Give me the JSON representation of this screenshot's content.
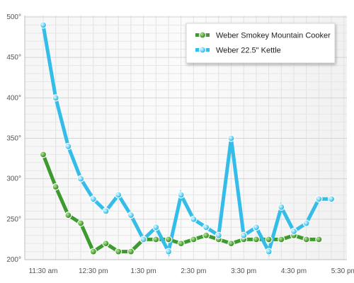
{
  "chart_data": {
    "type": "line",
    "title": "",
    "xlabel": "",
    "ylabel": "",
    "x": [
      "11:30 am",
      "11:45 am",
      "12:00 pm",
      "12:15 pm",
      "12:30 pm",
      "12:45 pm",
      "1:00 pm",
      "1:15 pm",
      "1:30 pm",
      "1:45 pm",
      "2:00 pm",
      "2:15 pm",
      "2:30 pm",
      "2:45 pm",
      "3:00 pm",
      "3:15 pm",
      "3:30 pm",
      "3:45 pm",
      "4:00 pm",
      "4:15 pm",
      "4:30 pm",
      "4:45 pm",
      "5:00 pm",
      "5:15 pm",
      "5:30 pm"
    ],
    "x_tick_labels": [
      "11:30 am",
      "12:30 pm",
      "1:30 pm",
      "2:30 pm",
      "3:30 pm",
      "4:30 pm",
      "5:30 pm"
    ],
    "y_tick_labels": [
      "200°",
      "250°",
      "300°",
      "350°",
      "400°",
      "450°",
      "500°"
    ],
    "ylim": [
      200,
      500
    ],
    "grid": true,
    "legend_position": "top-right",
    "series": [
      {
        "name": "Weber Smokey Mountain Cooker",
        "color": "#3c9a2e",
        "values": [
          330,
          290,
          255,
          245,
          210,
          220,
          210,
          210,
          225,
          225,
          225,
          220,
          225,
          230,
          225,
          220,
          225,
          225,
          225,
          225,
          230,
          225,
          225,
          null,
          null
        ]
      },
      {
        "name": "Weber 22.5\" Kettle",
        "color": "#34bde8",
        "values": [
          490,
          400,
          340,
          300,
          275,
          260,
          280,
          255,
          225,
          240,
          210,
          280,
          250,
          240,
          230,
          350,
          230,
          240,
          210,
          265,
          235,
          245,
          275,
          275,
          null
        ]
      }
    ]
  }
}
